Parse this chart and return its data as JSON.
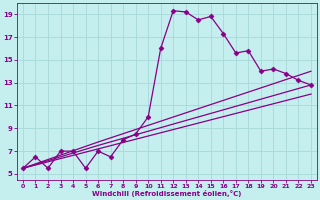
{
  "xlabel": "Windchill (Refroidissement éolien,°C)",
  "bg_color": "#c5eeee",
  "grid_color": "#a8d8d8",
  "line_color": "#880088",
  "xlim": [
    -0.5,
    23.5
  ],
  "ylim": [
    4.5,
    20
  ],
  "xticks": [
    0,
    1,
    2,
    3,
    4,
    5,
    6,
    7,
    8,
    9,
    10,
    11,
    12,
    13,
    14,
    15,
    16,
    17,
    18,
    19,
    20,
    21,
    22,
    23
  ],
  "yticks": [
    5,
    7,
    9,
    11,
    13,
    15,
    17,
    19
  ],
  "series": [
    {
      "x": [
        0,
        1,
        2,
        3,
        4,
        5,
        6,
        7,
        8,
        9,
        10,
        11,
        12,
        13,
        14,
        15,
        16,
        17,
        18,
        19,
        20,
        21,
        22,
        23
      ],
      "y": [
        5.5,
        6.5,
        5.5,
        7.0,
        7.0,
        5.5,
        7.0,
        6.5,
        8.0,
        8.5,
        10.0,
        16.0,
        19.3,
        19.2,
        18.5,
        18.8,
        17.3,
        15.6,
        15.8,
        14.0,
        14.2,
        13.8,
        13.2,
        12.8
      ],
      "marker": "D",
      "markersize": 2.5,
      "linewidth": 0.9
    },
    {
      "x": [
        0,
        6,
        23
      ],
      "y": [
        5.5,
        7.8,
        14.0
      ],
      "marker": null,
      "markersize": 0,
      "linewidth": 0.9
    },
    {
      "x": [
        0,
        6,
        23
      ],
      "y": [
        5.5,
        7.5,
        12.8
      ],
      "marker": null,
      "markersize": 0,
      "linewidth": 0.9
    },
    {
      "x": [
        0,
        23
      ],
      "y": [
        5.5,
        12.0
      ],
      "marker": null,
      "markersize": 0,
      "linewidth": 0.9
    }
  ]
}
